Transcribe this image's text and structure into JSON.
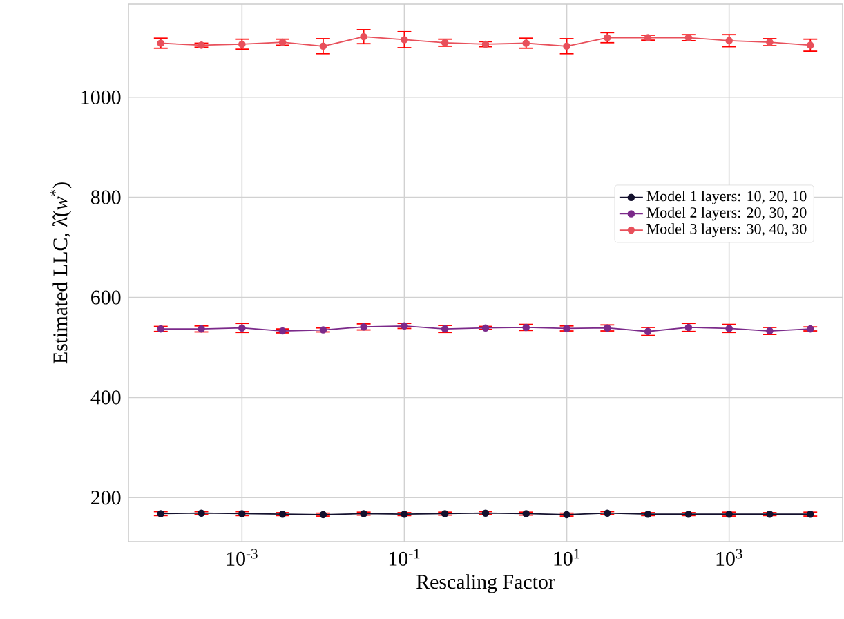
{
  "chart_data": {
    "type": "line",
    "xlabel": "Rescaling Factor",
    "ylabel": "Estimated LLC, λ̂(*w*$^{*}$)",
    "x": [
      0.0001,
      0.000316,
      0.001,
      0.00316,
      0.01,
      0.0316,
      0.1,
      0.316,
      1,
      3.16,
      10,
      31.6,
      100,
      316,
      1000,
      3160,
      10000
    ],
    "series": [
      {
        "name": "Model 1 layers: 10, 20, 10",
        "color": "#14112e",
        "values": [
          168,
          169,
          168,
          167,
          166,
          168,
          167,
          168,
          169,
          168,
          166,
          169,
          167,
          167,
          167,
          167,
          167
        ],
        "errors": [
          4,
          3,
          4,
          3,
          3,
          3,
          3,
          3,
          3,
          3,
          3,
          3,
          3,
          3,
          4,
          3,
          4
        ]
      },
      {
        "name": "Model 2 layers: 20, 30, 20",
        "color": "#7b2a8a",
        "values": [
          537,
          537,
          539,
          533,
          535,
          541,
          543,
          537,
          539,
          540,
          538,
          539,
          532,
          540,
          538,
          533,
          537
        ],
        "errors": [
          5,
          6,
          9,
          4,
          4,
          6,
          5,
          7,
          3,
          6,
          5,
          6,
          8,
          8,
          8,
          7,
          4
        ]
      },
      {
        "name": "Model 3 layers: 30, 40, 30",
        "color": "#e8505b",
        "values": [
          1108,
          1104,
          1106,
          1110,
          1102,
          1121,
          1115,
          1109,
          1106,
          1108,
          1102,
          1119,
          1119,
          1119,
          1113,
          1110,
          1104
        ],
        "errors": [
          10,
          4,
          10,
          6,
          15,
          14,
          16,
          7,
          5,
          10,
          15,
          10,
          5,
          6,
          12,
          7,
          12
        ]
      }
    ],
    "log": "x",
    "xlim": [
      4e-05,
      25000
    ],
    "xticks": [
      {
        "value": 0.001,
        "label": "10$^{-3}$"
      },
      {
        "value": 0.1,
        "label": "10$^{-1}$"
      },
      {
        "value": 10,
        "label": "10$^{1}$"
      },
      {
        "value": 1000,
        "label": "10$^{3}$"
      }
    ],
    "ylim": [
      112,
      1186
    ],
    "yticks": [
      200,
      400,
      600,
      800,
      1000
    ],
    "grid": true,
    "legend": "center right",
    "marker": "circle",
    "line_style": "solid"
  }
}
